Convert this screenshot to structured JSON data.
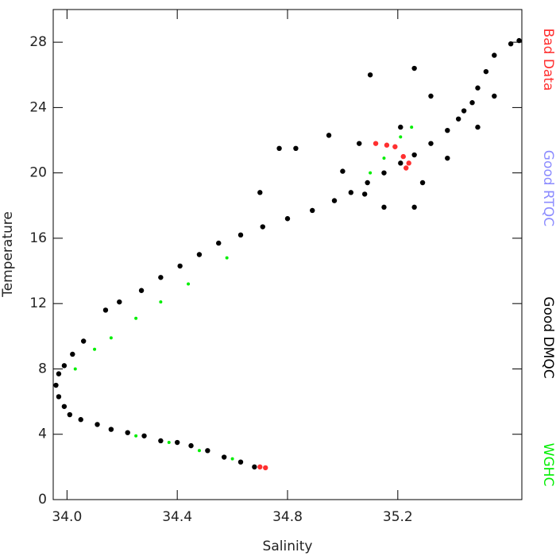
{
  "chart_data": {
    "type": "scatter",
    "x_label": "Salinity",
    "y_label": "Temperature",
    "xlim": [
      33.95,
      35.65
    ],
    "xticks": [
      {
        "value": 34.0,
        "label": "34.0"
      },
      {
        "value": 34.4,
        "label": "34.4"
      },
      {
        "value": 34.8,
        "label": "34.8"
      },
      {
        "value": 35.2,
        "label": "35.2"
      }
    ],
    "ylim": [
      0,
      30
    ],
    "yticks": [
      0,
      4,
      8,
      12,
      16,
      20,
      24,
      28
    ],
    "series": [
      {
        "name": "Bad Data",
        "color": "#ff3030",
        "x": [
          35.12,
          35.16,
          35.19,
          35.22,
          35.24,
          35.23,
          34.7,
          34.72
        ],
        "values": [
          21.8,
          21.7,
          21.6,
          21.0,
          20.6,
          20.3,
          2.0,
          1.95
        ]
      },
      {
        "name": "Good RTQC",
        "color": "#8c8cff",
        "x": [],
        "values": []
      },
      {
        "name": "Good DMQC",
        "color": "#000000",
        "x": [
          34.68,
          34.63,
          34.57,
          34.51,
          34.45,
          34.4,
          34.34,
          34.28,
          34.22,
          34.16,
          34.11,
          34.05,
          34.01,
          33.99,
          33.97,
          33.96,
          33.97,
          33.99,
          34.02,
          34.06,
          34.14,
          34.19,
          34.27,
          34.34,
          34.41,
          34.48,
          34.55,
          34.63,
          34.71,
          34.8,
          34.89,
          34.97,
          35.03,
          35.09,
          35.15,
          35.21,
          35.26,
          35.32,
          35.38,
          35.42,
          35.47,
          35.49,
          35.52,
          35.55,
          35.61,
          35.64,
          35.1,
          35.26,
          34.77,
          34.83,
          34.7,
          35.06,
          35.0,
          35.21,
          35.32,
          35.44,
          35.49,
          35.15,
          35.29,
          34.95,
          35.38,
          35.55,
          35.26,
          35.08
        ],
        "values": [
          2.0,
          2.3,
          2.6,
          3.0,
          3.3,
          3.5,
          3.6,
          3.9,
          4.1,
          4.3,
          4.6,
          4.9,
          5.2,
          5.7,
          6.3,
          7.0,
          7.7,
          8.2,
          8.9,
          9.7,
          11.6,
          12.1,
          12.8,
          13.6,
          14.3,
          15.0,
          15.7,
          16.2,
          16.7,
          17.2,
          17.7,
          18.3,
          18.8,
          19.4,
          20.0,
          20.6,
          21.1,
          21.8,
          22.6,
          23.3,
          24.3,
          25.2,
          26.2,
          27.2,
          27.9,
          28.1,
          26.0,
          26.4,
          21.5,
          21.5,
          18.8,
          21.8,
          20.1,
          22.8,
          24.7,
          23.8,
          22.8,
          17.9,
          19.4,
          22.3,
          20.9,
          24.7,
          17.9,
          18.7
        ]
      },
      {
        "name": "WGHC",
        "color": "#00ee00",
        "x": [
          34.6,
          34.48,
          34.37,
          34.25,
          34.03,
          34.1,
          34.16,
          34.25,
          34.34,
          34.44,
          34.58,
          35.1,
          35.15,
          35.25,
          35.21
        ],
        "values": [
          2.5,
          3.0,
          3.5,
          3.9,
          8.0,
          9.2,
          9.9,
          11.1,
          12.1,
          13.2,
          14.8,
          20.0,
          20.9,
          22.8,
          22.2
        ]
      }
    ]
  }
}
